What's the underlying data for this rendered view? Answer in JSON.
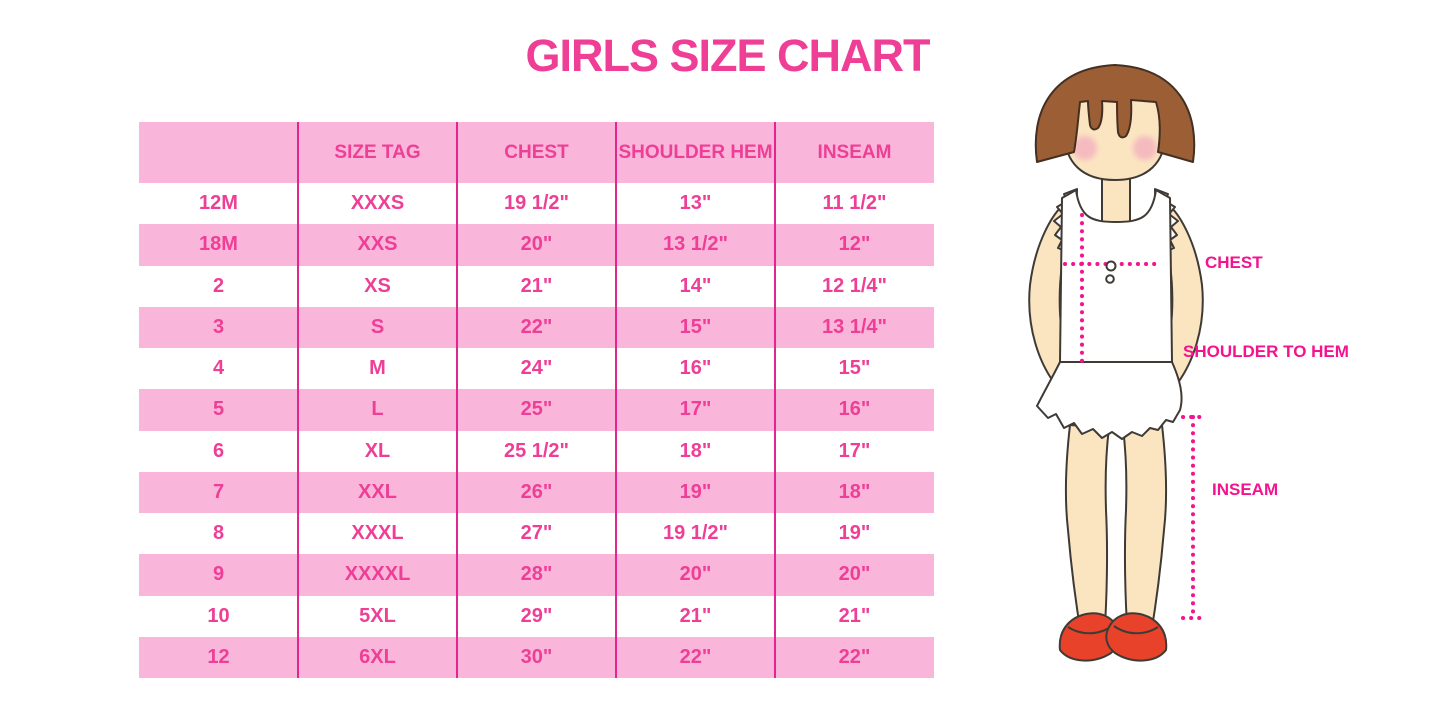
{
  "title": "GIRLS SIZE CHART",
  "table": {
    "headers": [
      "",
      "SIZE TAG",
      "CHEST",
      "SHOULDER HEM",
      "INSEAM"
    ],
    "rows": [
      [
        "12M",
        "XXXS",
        "19 1/2\"",
        "13\"",
        "11 1/2\""
      ],
      [
        "18M",
        "XXS",
        "20\"",
        "13 1/2\"",
        "12\""
      ],
      [
        "2",
        "XS",
        "21\"",
        "14\"",
        "12 1/4\""
      ],
      [
        "3",
        "S",
        "22\"",
        "15\"",
        "13 1/4\""
      ],
      [
        "4",
        "M",
        "24\"",
        "16\"",
        "15\""
      ],
      [
        "5",
        "L",
        "25\"",
        "17\"",
        "16\""
      ],
      [
        "6",
        "XL",
        "25 1/2\"",
        "18\"",
        "17\""
      ],
      [
        "7",
        "XXL",
        "26\"",
        "19\"",
        "18\""
      ],
      [
        "8",
        "XXXL",
        "27\"",
        "19 1/2\"",
        "19\""
      ],
      [
        "9",
        "XXXXL",
        "28\"",
        "20\"",
        "20\""
      ],
      [
        "10",
        "5XL",
        "29\"",
        "21\"",
        "21\""
      ],
      [
        "12",
        "6XL",
        "30\"",
        "22\"",
        "22\""
      ]
    ]
  },
  "figure": {
    "labels": {
      "chest": "CHEST",
      "shoulder_to_hem": "SHOULDER TO HEM",
      "inseam": "INSEAM"
    }
  },
  "colors": {
    "hot_pink_text": "#EE3E96",
    "light_pink_fill": "#F9B6DA",
    "separator_pink": "#E3268D",
    "label_magenta": "#F5128F",
    "hair_brown": "#9C5E35",
    "skin": "#FBE5C1",
    "shoe_red": "#E8432A",
    "dress_white": "#FFFFFF"
  }
}
